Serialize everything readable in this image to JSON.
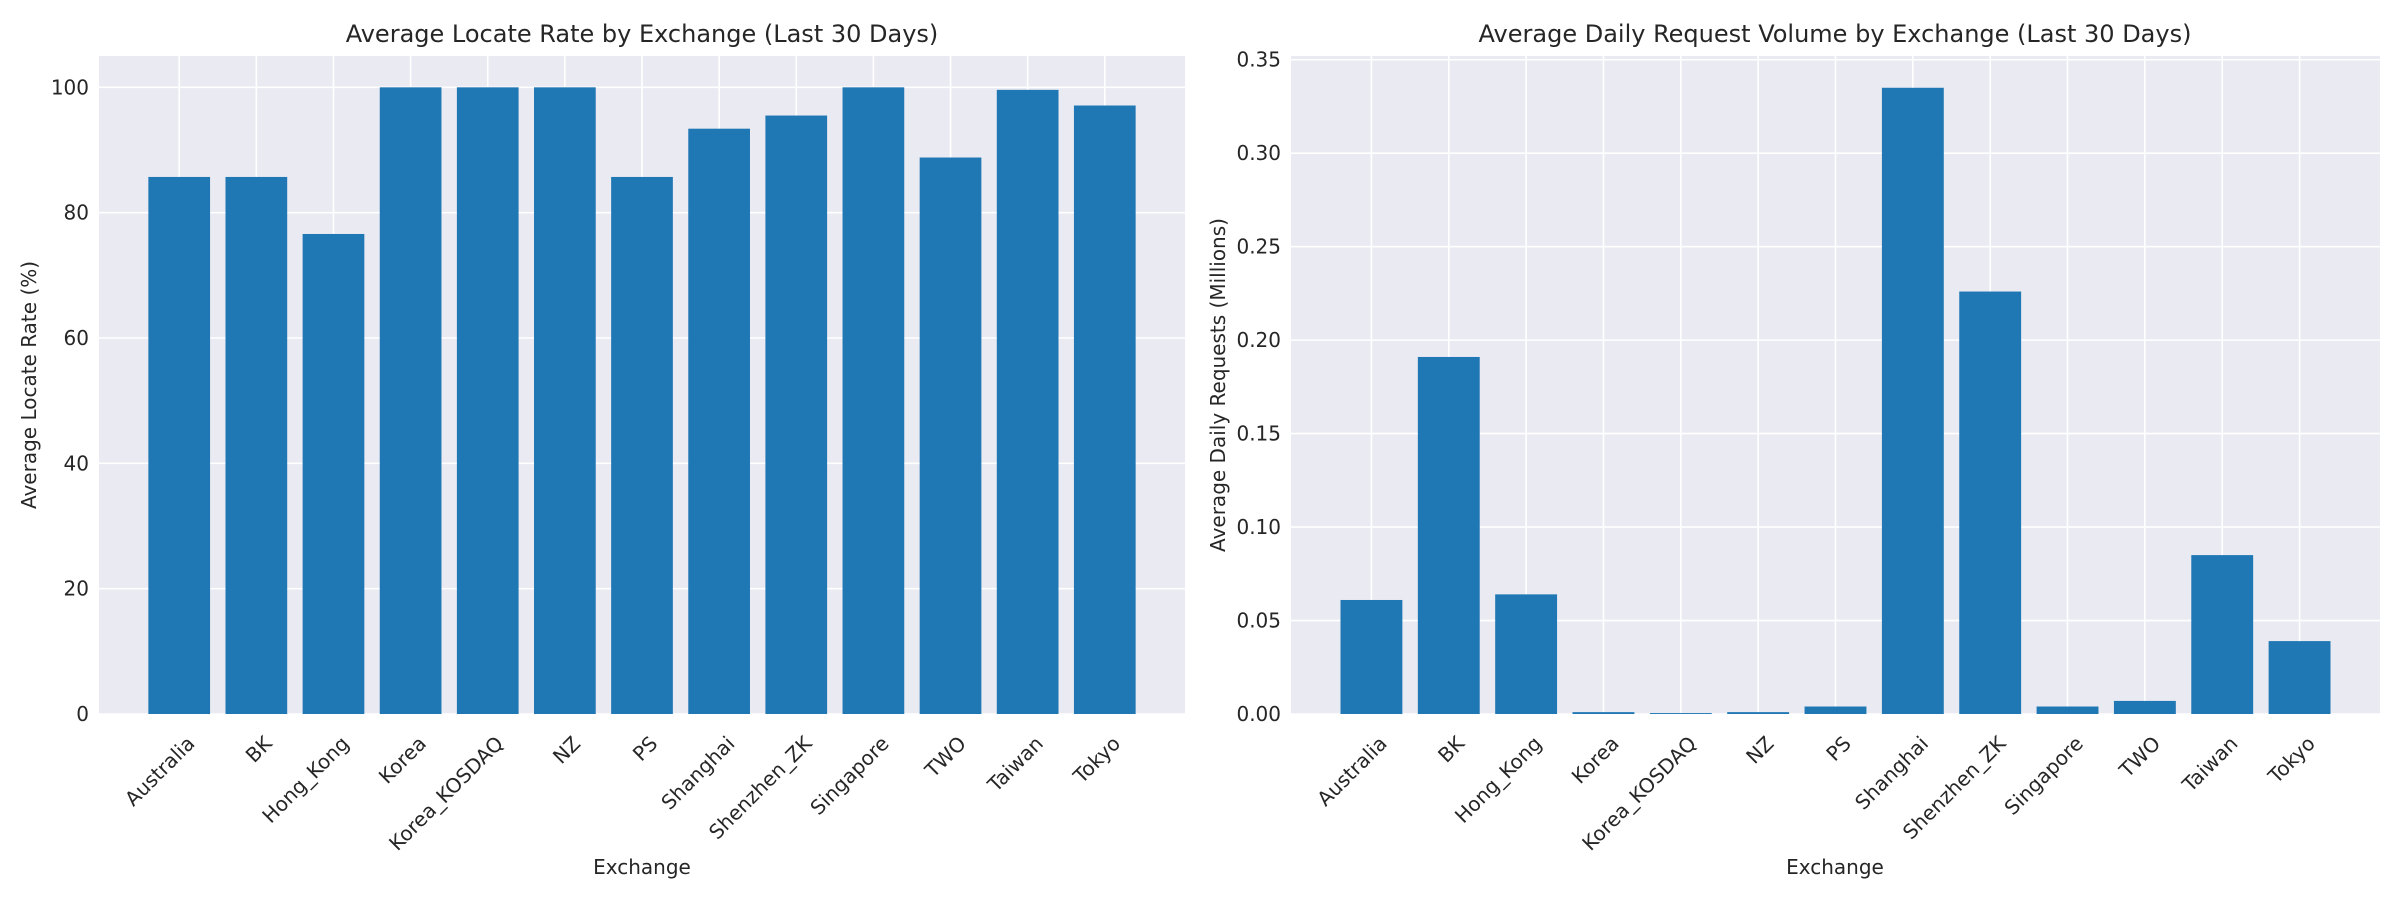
{
  "chart_data": [
    {
      "type": "bar",
      "title": "Average Locate Rate by Exchange (Last 30 Days)",
      "xlabel": "Exchange",
      "ylabel": "Average Locate Rate (%)",
      "categories": [
        "Australia",
        "BK",
        "Hong_Kong",
        "Korea",
        "Korea_KOSDAQ",
        "NZ",
        "PS",
        "Shanghai",
        "Shenzhen_ZK",
        "Singapore",
        "TWO",
        "Taiwan",
        "Tokyo"
      ],
      "values": [
        85.7,
        85.7,
        76.6,
        100.0,
        100.0,
        100.0,
        85.7,
        93.4,
        95.5,
        100.0,
        88.8,
        99.6,
        97.1
      ],
      "ylim": [
        0,
        105
      ],
      "yticks": [
        0,
        20,
        40,
        60,
        80,
        100
      ],
      "ytick_labels": [
        "0",
        "20",
        "40",
        "60",
        "80",
        "100"
      ],
      "grid": true,
      "color": "#1f77b4"
    },
    {
      "type": "bar",
      "title": "Average Daily Request Volume by Exchange (Last 30 Days)",
      "xlabel": "Exchange",
      "ylabel": "Average Daily Requests (Millions)",
      "categories": [
        "Australia",
        "BK",
        "Hong_Kong",
        "Korea",
        "Korea_KOSDAQ",
        "NZ",
        "PS",
        "Shanghai",
        "Shenzhen_ZK",
        "Singapore",
        "TWO",
        "Taiwan",
        "Tokyo"
      ],
      "values": [
        0.061,
        0.191,
        0.064,
        0.001,
        0.0005,
        0.001,
        0.004,
        0.335,
        0.226,
        0.004,
        0.007,
        0.085,
        0.039
      ],
      "ylim": [
        0,
        0.352
      ],
      "yticks": [
        0,
        0.05,
        0.1,
        0.15,
        0.2,
        0.25,
        0.3,
        0.35
      ],
      "ytick_labels": [
        "0.00",
        "0.05",
        "0.10",
        "0.15",
        "0.20",
        "0.25",
        "0.30",
        "0.35"
      ],
      "grid": true,
      "color": "#1f77b4"
    }
  ]
}
